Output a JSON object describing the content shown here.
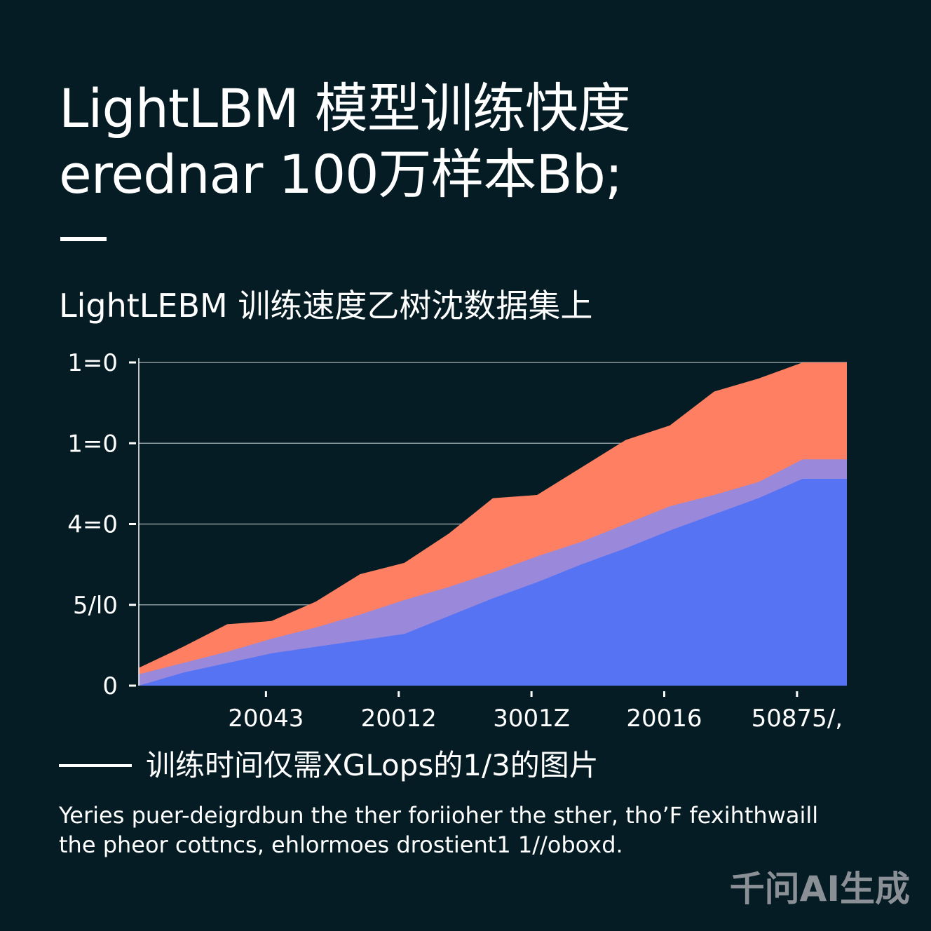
{
  "header": {
    "title_line1": "LightLBM 模型训练快度",
    "title_line2": "erednar 100万样本Bb;"
  },
  "subtitle": "LightLEBM 训练速度乙树沈数据集上",
  "chart_data": {
    "type": "area",
    "title": "LightLEBM 训练速度乙树沈数据集上",
    "x": [
      0,
      1,
      2,
      3,
      4,
      5,
      6,
      7,
      8,
      9,
      10,
      11,
      12,
      13,
      14,
      15,
      16
    ],
    "ylim": [
      0,
      200
    ],
    "y_ticks": [
      {
        "value": 0,
        "label": "0"
      },
      {
        "value": 50,
        "label": "5/l0"
      },
      {
        "value": 100,
        "label": "4=0"
      },
      {
        "value": 150,
        "label": "1=0"
      },
      {
        "value": 200,
        "label": "1=0"
      }
    ],
    "x_ticks": [
      {
        "x": 3,
        "label": "20043"
      },
      {
        "x": 6,
        "label": "20012"
      },
      {
        "x": 9,
        "label": "3001Z"
      },
      {
        "x": 12,
        "label": "20016"
      },
      {
        "x": 15,
        "label": "50875/,"
      }
    ],
    "grid": true,
    "series": [
      {
        "name": "orange",
        "color": "#fe7f61",
        "values": [
          11,
          24,
          38,
          40,
          52,
          69,
          76,
          94,
          116,
          118,
          135,
          152,
          161,
          182,
          190,
          200,
          200
        ]
      },
      {
        "name": "lavender",
        "color": "#9a89db",
        "values": [
          7,
          14,
          21,
          29,
          36,
          44,
          53,
          61,
          70,
          80,
          89,
          100,
          111,
          118,
          126,
          140,
          140
        ]
      },
      {
        "name": "blue",
        "color": "#5673f3",
        "values": [
          0,
          8,
          14,
          20,
          24,
          28,
          32,
          43,
          54,
          64,
          75,
          85,
          96,
          106,
          116,
          128,
          128
        ]
      }
    ]
  },
  "caption": "训练时间仅需XGLops的1/3的图片",
  "body": {
    "line1": "Yeries puer-deigrdbun the ther foriioher the sther, tho’F fexihthwaill",
    "line2": "the pheor cottncs, ehlormoes drostient1 1//oboxd."
  },
  "watermark": "千问AI生成"
}
